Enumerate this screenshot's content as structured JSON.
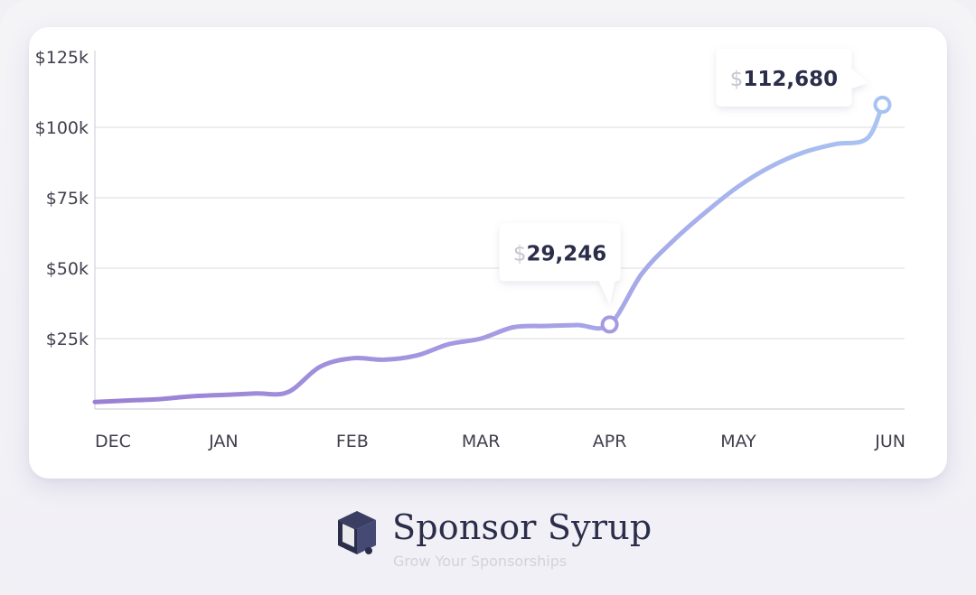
{
  "chart_data": {
    "type": "line",
    "x_labels": [
      "DEC",
      "JAN",
      "FEB",
      "MAR",
      "APR",
      "MAY",
      "JUN"
    ],
    "y_ticks": [
      "$25k",
      "$50k",
      "$75k",
      "$100k",
      "$125k"
    ],
    "y_tick_values": [
      25000,
      50000,
      75000,
      100000,
      125000
    ],
    "ylim": [
      0,
      125000
    ],
    "grid": true,
    "series": [
      {
        "x": [
          0,
          0.25,
          0.5,
          0.75,
          1.0,
          1.25,
          1.5,
          1.75,
          2.0,
          2.25,
          2.5,
          2.75,
          3.0,
          3.25,
          3.5,
          3.75,
          4.0,
          4.25,
          4.5,
          4.75,
          5.0,
          5.25,
          5.5,
          5.75,
          6.0,
          6.12
        ],
        "values": [
          2500,
          3000,
          3500,
          4500,
          5000,
          5500,
          6000,
          15000,
          18000,
          17500,
          19000,
          23000,
          25000,
          29000,
          29500,
          29800,
          30000,
          48000,
          60000,
          70000,
          79000,
          86000,
          91000,
          94000,
          96000,
          108000
        ]
      }
    ],
    "annotations": [
      {
        "x": 4.0,
        "y": 30000,
        "currency": "$",
        "label": "29,246"
      },
      {
        "x": 6.12,
        "y": 108000,
        "currency": "$",
        "label": "112,680"
      }
    ],
    "colors": {
      "line_start": "#9b7fd4",
      "line_end": "#aac6f4",
      "grid": "#e7e7ec",
      "axis": "#d9d9e0"
    }
  },
  "brand": {
    "name": "Sponsor Syrup",
    "tagline": "Grow Your Sponsorships",
    "logo_icon": "syrup-box-logo-icon"
  }
}
